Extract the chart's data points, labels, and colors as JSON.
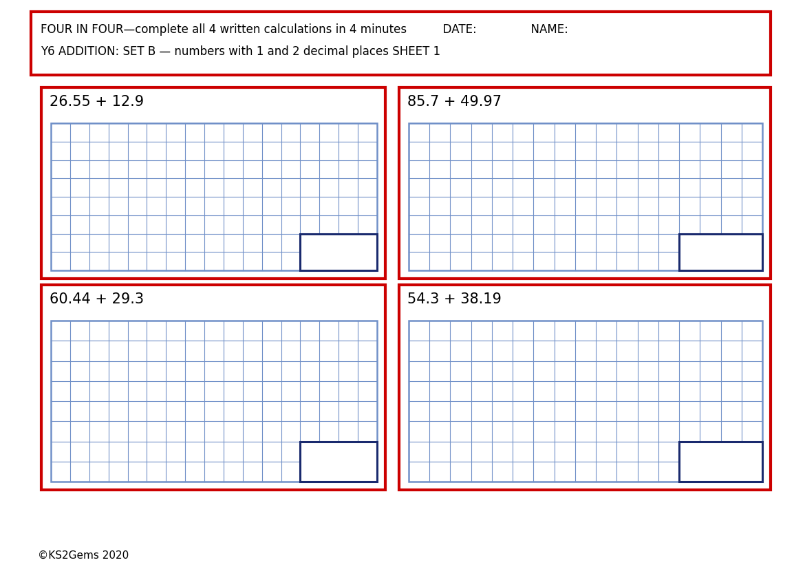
{
  "title_line1": "FOUR IN FOUR—complete all 4 written calculations in 4 minutes          DATE:               NAME:",
  "title_line2": "Y6 ADDITION: SET B — numbers with 1 and 2 decimal places SHEET 1",
  "problems": [
    "26.55 + 12.9",
    "85.7 + 49.97",
    "60.44 + 29.3",
    "54.3 + 38.19"
  ],
  "copyright": "©KS2Gems 2020",
  "bg_color": "#ffffff",
  "red_border": "#cc0000",
  "blue_grid": "#7090c8",
  "dark_blue_box": "#1a2a6e",
  "grid_cols": 17,
  "grid_rows": 8,
  "answer_cols": 4,
  "answer_rows": 2
}
